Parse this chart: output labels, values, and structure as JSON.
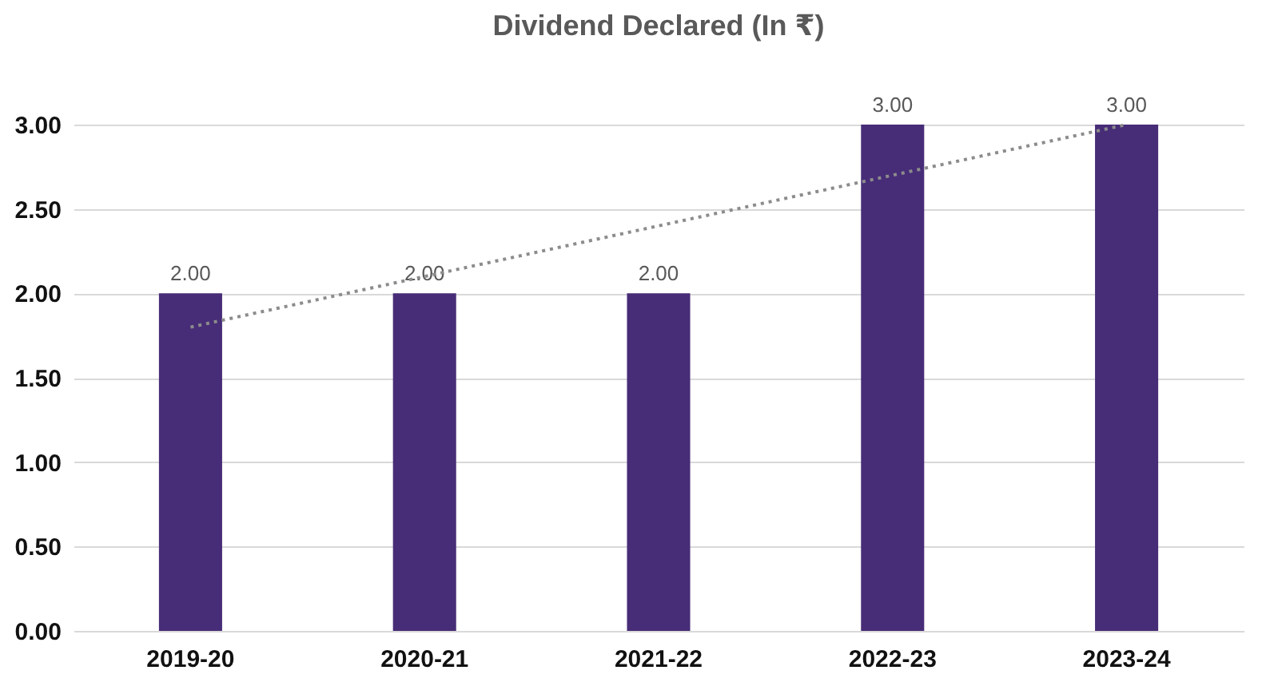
{
  "chart_data": {
    "type": "bar",
    "title": "Dividend Declared (In ₹)",
    "categories": [
      "2019-20",
      "2020-21",
      "2021-22",
      "2022-23",
      "2023-24"
    ],
    "series": [
      {
        "color": "#472c77",
        "values": [
          2,
          2,
          2,
          3,
          3
        ],
        "value_labels": [
          "2.00",
          "2.00",
          "2.00",
          "3.00",
          "3.00"
        ]
      },
      {
        "type": "line",
        "x": [
          "2019-20",
          "2023-24"
        ],
        "values": [
          1.8,
          3.0
        ],
        "color": "#8c8c8c",
        "line_style": "dotted"
      }
    ],
    "ylim": [
      0,
      3
    ],
    "yticks": [
      {
        "value": 0,
        "label": "0.00"
      },
      {
        "value": 0.5,
        "label": "0.50"
      },
      {
        "value": 1,
        "label": "1.00"
      },
      {
        "value": 1.5,
        "label": "1.50"
      },
      {
        "value": 2,
        "label": "2.00"
      },
      {
        "value": 2.5,
        "label": "2.50"
      },
      {
        "value": 3,
        "label": "3.00"
      }
    ],
    "grid": "y"
  }
}
